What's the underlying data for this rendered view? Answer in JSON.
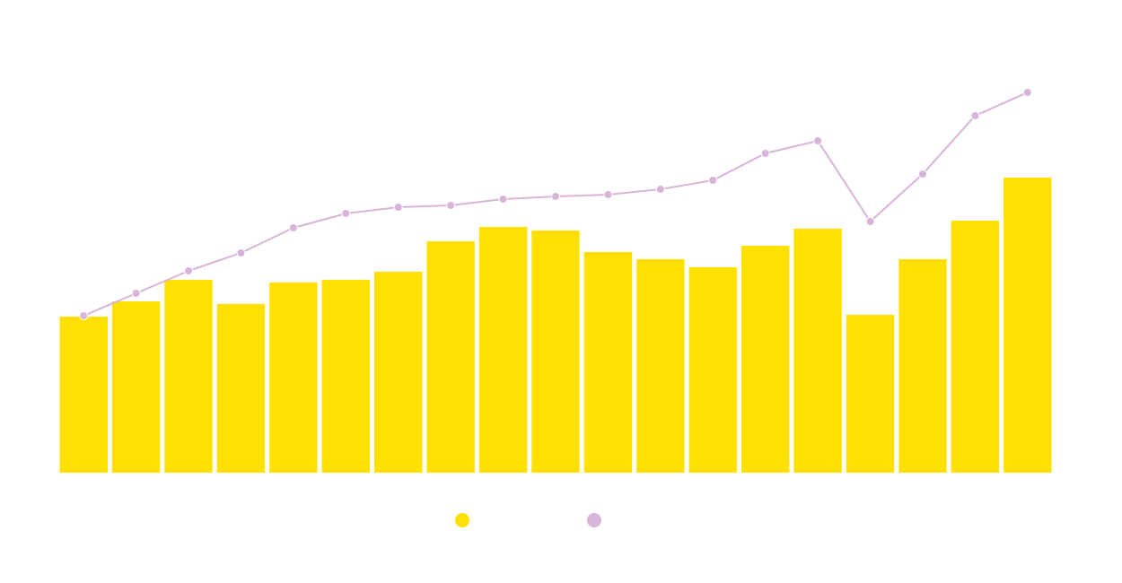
{
  "chart_data": {
    "type": "bar",
    "title": "",
    "xlabel": "",
    "ylabel": "",
    "grid": false,
    "legend_placement": "bottom-center",
    "ylim": [
      0,
      440
    ],
    "categories": [
      "",
      "",
      "",
      "",
      "",
      "",
      "",
      "",
      "",
      "",
      "",
      "",
      "",
      "",
      "",
      "",
      "",
      "",
      ""
    ],
    "series": [
      {
        "name": "",
        "kind": "bar",
        "color": "#FFE000",
        "values": [
          174,
          191,
          215,
          188,
          212,
          215,
          224,
          258,
          274,
          270,
          246,
          238,
          229,
          253,
          272,
          176,
          238,
          281,
          329
        ]
      },
      {
        "name": "",
        "kind": "line",
        "color": "#D8B4D8",
        "values": [
          175,
          200,
          225,
          245,
          273,
          289,
          296,
          298,
          305,
          308,
          310,
          316,
          326,
          356,
          370,
          280,
          333,
          398,
          424
        ]
      }
    ]
  }
}
